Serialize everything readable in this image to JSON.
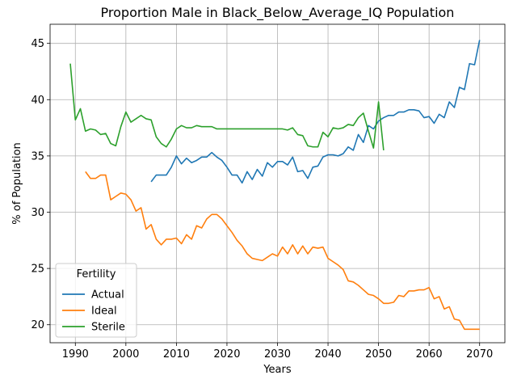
{
  "chart_data": {
    "type": "line",
    "title": "Proportion Male in Black_Below_Average_IQ Population",
    "xlabel": "Years",
    "ylabel": "% of Population",
    "xlim": [
      1985,
      2075
    ],
    "ylim": [
      18.4,
      46.7
    ],
    "xticks": [
      1990,
      2000,
      2010,
      2020,
      2030,
      2040,
      2050,
      2060,
      2070
    ],
    "yticks": [
      20,
      25,
      30,
      35,
      40,
      45
    ],
    "grid": true,
    "legend": {
      "title": "Fertility",
      "placement": "lower-left"
    },
    "series": [
      {
        "name": "Actual",
        "color": "#1f77b4",
        "x": [
          2005,
          2006,
          2007,
          2008,
          2009,
          2010,
          2011,
          2012,
          2013,
          2014,
          2015,
          2016,
          2017,
          2018,
          2019,
          2020,
          2021,
          2022,
          2023,
          2024,
          2025,
          2026,
          2027,
          2028,
          2029,
          2030,
          2031,
          2032,
          2033,
          2034,
          2035,
          2036,
          2037,
          2038,
          2039,
          2040,
          2041,
          2042,
          2043,
          2044,
          2045,
          2046,
          2047,
          2048,
          2049,
          2050,
          2051,
          2052,
          2053,
          2054,
          2055,
          2056,
          2057,
          2058,
          2059,
          2060,
          2061,
          2062,
          2063,
          2064,
          2065,
          2066,
          2067,
          2068,
          2069,
          2070
        ],
        "y": [
          32.7,
          33.3,
          33.3,
          33.3,
          34.0,
          35.0,
          34.3,
          34.8,
          34.4,
          34.6,
          34.9,
          34.9,
          35.3,
          34.9,
          34.6,
          34.0,
          33.3,
          33.3,
          32.6,
          33.6,
          32.9,
          33.8,
          33.2,
          34.4,
          34.0,
          34.5,
          34.5,
          34.2,
          34.9,
          33.6,
          33.7,
          33.0,
          34.0,
          34.1,
          34.9,
          35.1,
          35.1,
          35.0,
          35.2,
          35.8,
          35.5,
          36.9,
          36.2,
          37.7,
          37.4,
          38.1,
          38.4,
          38.6,
          38.6,
          38.9,
          38.9,
          39.1,
          39.1,
          39.0,
          38.4,
          38.5,
          37.9,
          38.7,
          38.4,
          39.8,
          39.3,
          41.1,
          40.9,
          43.2,
          43.1,
          45.3
        ]
      },
      {
        "name": "Ideal",
        "color": "#ff7f0e",
        "x": [
          1992,
          1993,
          1994,
          1995,
          1996,
          1997,
          1998,
          1999,
          2000,
          2001,
          2002,
          2003,
          2004,
          2005,
          2006,
          2007,
          2008,
          2009,
          2010,
          2011,
          2012,
          2013,
          2014,
          2015,
          2016,
          2017,
          2018,
          2019,
          2020,
          2021,
          2022,
          2023,
          2024,
          2025,
          2026,
          2027,
          2028,
          2029,
          2030,
          2031,
          2032,
          2033,
          2034,
          2035,
          2036,
          2037,
          2038,
          2039,
          2040,
          2041,
          2042,
          2043,
          2044,
          2045,
          2046,
          2047,
          2048,
          2049,
          2050,
          2051,
          2052,
          2053,
          2054,
          2055,
          2056,
          2057,
          2058,
          2059,
          2060,
          2061,
          2062,
          2063,
          2064,
          2065,
          2066,
          2067,
          2068,
          2069,
          2070
        ],
        "y": [
          33.6,
          33.0,
          33.0,
          33.3,
          33.3,
          31.1,
          31.4,
          31.7,
          31.6,
          31.1,
          30.1,
          30.4,
          28.5,
          28.9,
          27.6,
          27.1,
          27.6,
          27.6,
          27.7,
          27.2,
          28.0,
          27.6,
          28.8,
          28.6,
          29.4,
          29.8,
          29.8,
          29.4,
          28.8,
          28.2,
          27.5,
          27.0,
          26.3,
          25.9,
          25.8,
          25.7,
          26.0,
          26.3,
          26.1,
          26.9,
          26.3,
          27.1,
          26.3,
          27.0,
          26.3,
          26.9,
          26.8,
          26.9,
          25.9,
          25.6,
          25.3,
          24.9,
          23.9,
          23.8,
          23.5,
          23.1,
          22.7,
          22.6,
          22.3,
          21.9,
          21.9,
          22.0,
          22.6,
          22.5,
          23.0,
          23.0,
          23.1,
          23.1,
          23.3,
          22.3,
          22.5,
          21.4,
          21.6,
          20.5,
          20.4,
          19.6,
          19.6,
          19.6,
          19.6
        ]
      },
      {
        "name": "Sterile",
        "color": "#2ca02c",
        "x": [
          1989,
          1990,
          1991,
          1992,
          1993,
          1994,
          1995,
          1996,
          1997,
          1998,
          1999,
          2000,
          2001,
          2002,
          2003,
          2004,
          2005,
          2006,
          2007,
          2008,
          2009,
          2010,
          2011,
          2012,
          2013,
          2014,
          2015,
          2016,
          2017,
          2018,
          2019,
          2020,
          2021,
          2022,
          2023,
          2024,
          2025,
          2026,
          2027,
          2028,
          2029,
          2030,
          2031,
          2032,
          2033,
          2034,
          2035,
          2036,
          2037,
          2038,
          2039,
          2040,
          2041,
          2042,
          2043,
          2044,
          2045,
          2046,
          2047,
          2048,
          2049,
          2050,
          2051
        ],
        "y": [
          43.2,
          38.2,
          39.2,
          37.2,
          37.4,
          37.3,
          36.9,
          37.0,
          36.1,
          35.9,
          37.6,
          38.9,
          38.0,
          38.3,
          38.6,
          38.3,
          38.2,
          36.7,
          36.1,
          35.8,
          36.5,
          37.4,
          37.7,
          37.5,
          37.5,
          37.7,
          37.6,
          37.6,
          37.6,
          37.4,
          37.4,
          37.4,
          37.4,
          37.4,
          37.4,
          37.4,
          37.4,
          37.4,
          37.4,
          37.4,
          37.4,
          37.4,
          37.4,
          37.3,
          37.5,
          36.9,
          36.8,
          35.9,
          35.8,
          35.8,
          37.1,
          36.7,
          37.5,
          37.4,
          37.5,
          37.8,
          37.7,
          38.4,
          38.8,
          37.2,
          35.7,
          39.8,
          35.5
        ]
      }
    ]
  }
}
